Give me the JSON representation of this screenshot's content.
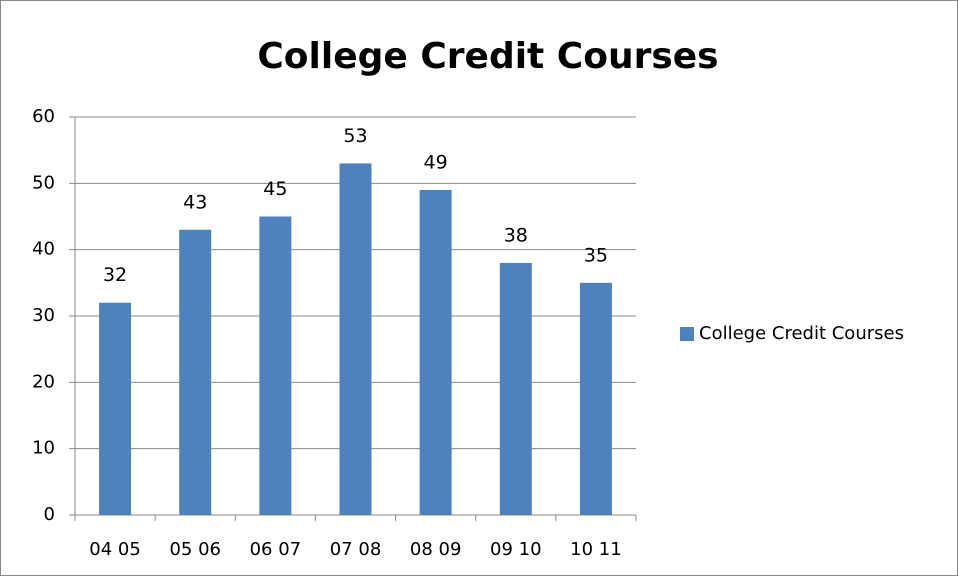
{
  "chart_data": {
    "type": "bar",
    "title": "College Credit Courses",
    "categories": [
      "04 05",
      "05 06",
      "06 07",
      "07 08",
      "08 09",
      "09 10",
      "10 11"
    ],
    "series": [
      {
        "name": "College Credit Courses",
        "color": "#4f81bd",
        "values": [
          32,
          43,
          45,
          53,
          49,
          38,
          35
        ]
      }
    ],
    "ylim": [
      0,
      60
    ],
    "yticks": [
      0,
      10,
      20,
      30,
      40,
      50,
      60
    ],
    "grid": true,
    "legend": "right"
  }
}
